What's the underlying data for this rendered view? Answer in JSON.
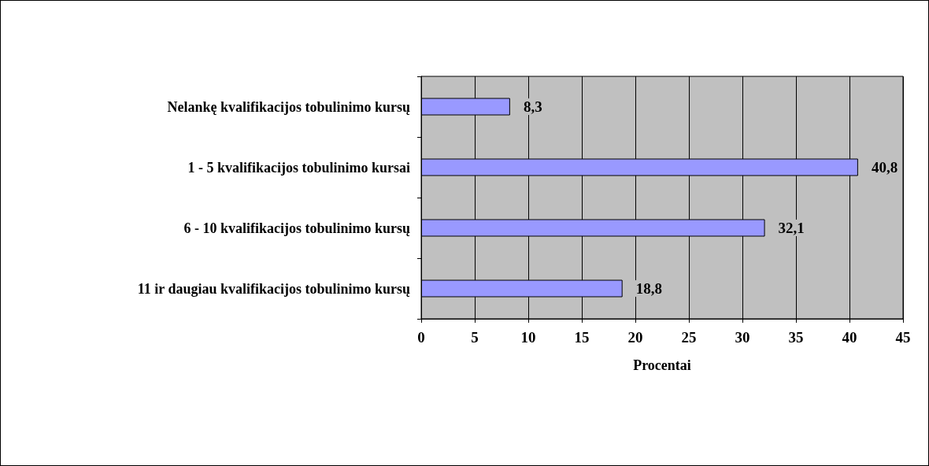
{
  "chart_data": {
    "type": "bar",
    "orientation": "horizontal",
    "categories": [
      "Nelankę kvalifikacijos tobulinimo kursų",
      "1 - 5 kvalifikacijos tobulinimo kursai",
      "6 - 10 kvalifikacijos tobulinimo kursų",
      "11 ir daugiau kvalifikacijos tobulinimo kursų"
    ],
    "values": [
      8.3,
      40.8,
      32.1,
      18.8
    ],
    "value_labels": [
      "8,3",
      "40,8",
      "32,1",
      "18,8"
    ],
    "color": "#9999ff",
    "xlabel": "Procentai",
    "xlim": [
      0,
      45
    ],
    "xticks": [
      0,
      5,
      10,
      15,
      20,
      25,
      30,
      35,
      40,
      45
    ],
    "grid": "x"
  }
}
